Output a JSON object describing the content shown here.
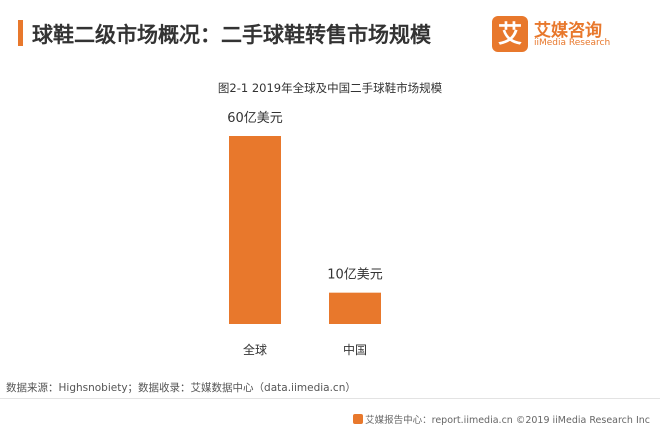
{
  "header": {
    "title": "球鞋二级市场概况：二手球鞋转售市场规模"
  },
  "logo": {
    "mark": "艾",
    "name": "艾媒咨询",
    "sub": "iiMedia Research"
  },
  "chart_data": {
    "type": "bar",
    "title": "图2-1 2019年全球及中国二手球鞋市场规模",
    "categories": [
      "全球",
      "中国"
    ],
    "values": [
      60,
      10
    ],
    "data_labels": [
      "60亿美元",
      "10亿美元"
    ],
    "ylim": [
      0,
      60
    ],
    "color": "#e8782c",
    "grid": false,
    "legend": "none"
  },
  "footer": {
    "source": "数据来源：Highsnobiety；数据收录：艾媒数据中心（data.iimedia.cn）",
    "credit": "艾媒报告中心：report.iimedia.cn  ©2019  iiMedia Research  Inc"
  }
}
